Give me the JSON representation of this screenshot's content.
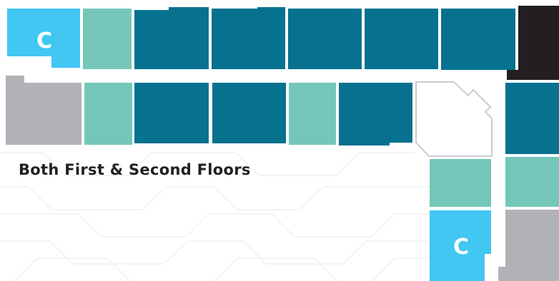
{
  "caption": "Both First & Second Floors",
  "colors": {
    "background": "#ffffff",
    "pattern_lines": "#eef0f2",
    "unit_dark_teal": "#06728f",
    "unit_mint": "#74c7b8",
    "unit_sky_blue": "#42c6f2",
    "unit_gray": "#b0b2b6",
    "unit_black": "#231f20",
    "outline_gray": "#c9ccd0",
    "caption_text": "#231f20",
    "marker_text": "#ffffff"
  },
  "markers": {
    "top_left": "C",
    "bottom_right": "C"
  }
}
